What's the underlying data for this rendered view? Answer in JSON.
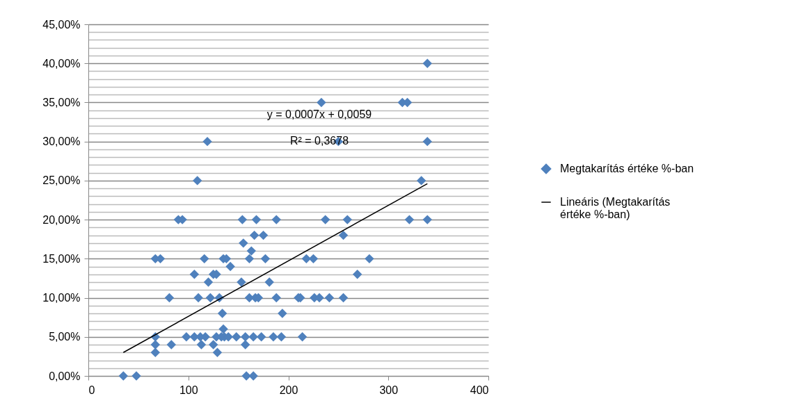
{
  "chart_data": {
    "type": "scatter",
    "xlim": [
      0,
      400
    ],
    "xticks": [
      0,
      100,
      200,
      300,
      400
    ],
    "ylim": [
      0,
      45
    ],
    "yticks": [
      {
        "value": 0,
        "label": "0,00%"
      },
      {
        "value": 1,
        "label": null
      },
      {
        "value": 2,
        "label": null
      },
      {
        "value": 3,
        "label": null
      },
      {
        "value": 4,
        "label": null
      },
      {
        "value": 5,
        "label": "5,00%"
      },
      {
        "value": 6,
        "label": null
      },
      {
        "value": 7,
        "label": null
      },
      {
        "value": 8,
        "label": null
      },
      {
        "value": 9,
        "label": null
      },
      {
        "value": 10,
        "label": "10,00%"
      },
      {
        "value": 11,
        "label": null
      },
      {
        "value": 12,
        "label": null
      },
      {
        "value": 13,
        "label": null
      },
      {
        "value": 14,
        "label": null
      },
      {
        "value": 15,
        "label": "15,00%"
      },
      {
        "value": 16,
        "label": null
      },
      {
        "value": 17,
        "label": null
      },
      {
        "value": 18,
        "label": null
      },
      {
        "value": 19,
        "label": null
      },
      {
        "value": 20,
        "label": "20,00%"
      },
      {
        "value": 21,
        "label": null
      },
      {
        "value": 22,
        "label": null
      },
      {
        "value": 23,
        "label": null
      },
      {
        "value": 24,
        "label": null
      },
      {
        "value": 25,
        "label": "25,00%"
      },
      {
        "value": 26,
        "label": null
      },
      {
        "value": 27,
        "label": null
      },
      {
        "value": 28,
        "label": null
      },
      {
        "value": 29,
        "label": null
      },
      {
        "value": 30,
        "label": "30,00%"
      },
      {
        "value": 31,
        "label": null
      },
      {
        "value": 32,
        "label": null
      },
      {
        "value": 33,
        "label": null
      },
      {
        "value": 34,
        "label": null
      },
      {
        "value": 35,
        "label": "35,00%"
      },
      {
        "value": 36,
        "label": null
      },
      {
        "value": 37,
        "label": null
      },
      {
        "value": 38,
        "label": null
      },
      {
        "value": 39,
        "label": null
      },
      {
        "value": 40,
        "label": "40,00%"
      },
      {
        "value": 41,
        "label": null
      },
      {
        "value": 42,
        "label": null
      },
      {
        "value": 43,
        "label": null
      },
      {
        "value": 44,
        "label": null
      },
      {
        "value": 45,
        "label": "45,00%"
      }
    ],
    "grid": "y",
    "legend": "right",
    "annotations": [
      "y = 0,0007x + 0,0059",
      "R² = 0,3678"
    ],
    "series": [
      {
        "name": "Megtakarítás értéke %-ban",
        "color": "#4f81bd",
        "marker": "diamond",
        "x": [
          35,
          48,
          67,
          72,
          67,
          67,
          67,
          81,
          83,
          98,
          90,
          94,
          106,
          110,
          109,
          119,
          106,
          112,
          117,
          113,
          116,
          120,
          122,
          125,
          128,
          125,
          128,
          129,
          131,
          133,
          134,
          135,
          136,
          135,
          138,
          142,
          140,
          148,
          153,
          154,
          155,
          157,
          157,
          158,
          165,
          161,
          163,
          161,
          166,
          168,
          165,
          167,
          170,
          173,
          175,
          177,
          181,
          185,
          188,
          188,
          194,
          193,
          210,
          212,
          214,
          218,
          225,
          226,
          231,
          233,
          237,
          241,
          250,
          255,
          255,
          259,
          269,
          281,
          314,
          319,
          321,
          333,
          339,
          339,
          339
        ],
        "values": [
          0,
          0,
          15,
          15,
          5,
          4,
          3,
          10,
          4,
          5,
          20,
          20,
          13,
          10,
          25,
          30,
          5,
          5,
          5,
          4,
          15,
          12,
          10,
          13,
          5,
          4,
          13,
          3,
          10,
          5,
          8,
          6,
          5,
          15,
          15,
          14,
          5,
          5,
          12,
          20,
          17,
          5,
          4,
          0,
          0,
          15,
          16,
          10,
          18,
          20,
          5,
          10,
          10,
          5,
          18,
          15,
          12,
          5,
          10,
          20,
          8,
          5,
          10,
          10,
          5,
          15,
          15,
          10,
          10,
          35,
          20,
          10,
          30,
          18,
          10,
          20,
          13,
          15,
          35,
          35,
          20,
          25,
          40,
          30,
          20
        ]
      },
      {
        "name": "Lineáris (Megtakarítás értéke %-ban)",
        "type": "line",
        "color": "#000000",
        "x": [
          35,
          339
        ],
        "values": [
          3.0,
          24.6
        ]
      }
    ]
  }
}
